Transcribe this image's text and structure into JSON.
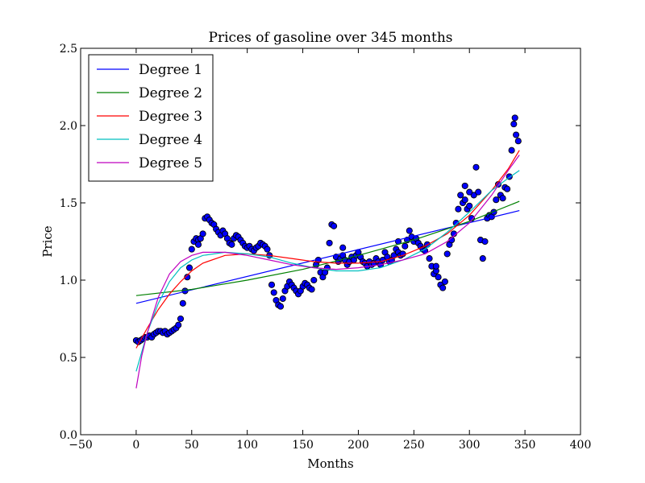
{
  "chart_data": {
    "type": "scatter",
    "title": "Prices of gasoline over 345 months",
    "xlabel": "Months",
    "ylabel": "Price",
    "xlim": [
      -50,
      400
    ],
    "ylim": [
      0.0,
      2.5
    ],
    "xticks": [
      -50,
      0,
      50,
      100,
      150,
      200,
      250,
      300,
      350,
      400
    ],
    "yticks": [
      0.0,
      0.5,
      1.0,
      1.5,
      2.0,
      2.5
    ],
    "xtick_labels": [
      "−50",
      "0",
      "50",
      "100",
      "150",
      "200",
      "250",
      "300",
      "350",
      "400"
    ],
    "ytick_labels": [
      "0.0",
      "0.5",
      "1.0",
      "1.5",
      "2.0",
      "2.5"
    ],
    "grid": false,
    "legend_position": "top-left",
    "scatter": {
      "color": "#0000ff",
      "edge_color": "#000000",
      "points": [
        [
          0,
          0.61
        ],
        [
          2,
          0.6
        ],
        [
          4,
          0.61
        ],
        [
          6,
          0.62
        ],
        [
          8,
          0.63
        ],
        [
          10,
          0.63
        ],
        [
          12,
          0.64
        ],
        [
          14,
          0.63
        ],
        [
          16,
          0.65
        ],
        [
          18,
          0.66
        ],
        [
          20,
          0.67
        ],
        [
          22,
          0.67
        ],
        [
          24,
          0.66
        ],
        [
          26,
          0.67
        ],
        [
          28,
          0.65
        ],
        [
          30,
          0.66
        ],
        [
          32,
          0.67
        ],
        [
          34,
          0.68
        ],
        [
          36,
          0.69
        ],
        [
          38,
          0.71
        ],
        [
          40,
          0.75
        ],
        [
          42,
          0.85
        ],
        [
          44,
          0.93
        ],
        [
          46,
          1.02
        ],
        [
          48,
          1.08
        ],
        [
          50,
          1.2
        ],
        [
          52,
          1.25
        ],
        [
          54,
          1.27
        ],
        [
          56,
          1.26
        ],
        [
          58,
          1.27
        ],
        [
          60,
          1.3
        ],
        [
          62,
          1.4
        ],
        [
          64,
          1.41
        ],
        [
          66,
          1.39
        ],
        [
          68,
          1.37
        ],
        [
          70,
          1.36
        ],
        [
          72,
          1.33
        ],
        [
          74,
          1.31
        ],
        [
          76,
          1.29
        ],
        [
          78,
          1.32
        ],
        [
          80,
          1.3
        ],
        [
          82,
          1.27
        ],
        [
          84,
          1.24
        ],
        [
          86,
          1.23
        ],
        [
          88,
          1.27
        ],
        [
          90,
          1.29
        ],
        [
          92,
          1.28
        ],
        [
          94,
          1.26
        ],
        [
          96,
          1.24
        ],
        [
          98,
          1.22
        ],
        [
          100,
          1.21
        ],
        [
          102,
          1.22
        ],
        [
          104,
          1.2
        ],
        [
          106,
          1.19
        ],
        [
          108,
          1.21
        ],
        [
          110,
          1.22
        ],
        [
          112,
          1.24
        ],
        [
          114,
          1.23
        ],
        [
          116,
          1.22
        ],
        [
          118,
          1.2
        ],
        [
          120,
          1.16
        ],
        [
          122,
          0.97
        ],
        [
          124,
          0.92
        ],
        [
          126,
          0.87
        ],
        [
          128,
          0.84
        ],
        [
          130,
          0.83
        ],
        [
          132,
          0.88
        ],
        [
          134,
          0.93
        ],
        [
          136,
          0.96
        ],
        [
          138,
          0.99
        ],
        [
          140,
          0.97
        ],
        [
          142,
          0.95
        ],
        [
          144,
          0.93
        ],
        [
          146,
          0.91
        ],
        [
          148,
          0.93
        ],
        [
          150,
          0.96
        ],
        [
          152,
          0.98
        ],
        [
          154,
          0.97
        ],
        [
          156,
          0.95
        ],
        [
          158,
          0.94
        ],
        [
          160,
          1.0
        ],
        [
          162,
          1.1
        ],
        [
          164,
          1.13
        ],
        [
          166,
          1.05
        ],
        [
          168,
          1.02
        ],
        [
          170,
          1.05
        ],
        [
          172,
          1.08
        ],
        [
          174,
          1.24
        ],
        [
          176,
          1.36
        ],
        [
          178,
          1.35
        ],
        [
          180,
          1.15
        ],
        [
          182,
          1.12
        ],
        [
          184,
          1.14
        ],
        [
          186,
          1.16
        ],
        [
          188,
          1.13
        ],
        [
          190,
          1.1
        ],
        [
          192,
          1.12
        ],
        [
          194,
          1.15
        ],
        [
          196,
          1.13
        ],
        [
          198,
          1.16
        ],
        [
          200,
          1.18
        ],
        [
          202,
          1.15
        ],
        [
          204,
          1.12
        ],
        [
          206,
          1.11
        ],
        [
          208,
          1.09
        ],
        [
          210,
          1.12
        ],
        [
          212,
          1.1
        ],
        [
          214,
          1.11
        ],
        [
          216,
          1.14
        ],
        [
          218,
          1.12
        ],
        [
          220,
          1.1
        ],
        [
          222,
          1.13
        ],
        [
          224,
          1.18
        ],
        [
          226,
          1.15
        ],
        [
          228,
          1.12
        ],
        [
          230,
          1.13
        ],
        [
          232,
          1.16
        ],
        [
          234,
          1.2
        ],
        [
          236,
          1.18
        ],
        [
          238,
          1.16
        ],
        [
          240,
          1.17
        ],
        [
          242,
          1.22
        ],
        [
          244,
          1.26
        ],
        [
          246,
          1.32
        ],
        [
          248,
          1.28
        ],
        [
          250,
          1.25
        ],
        [
          252,
          1.27
        ],
        [
          254,
          1.24
        ],
        [
          256,
          1.22
        ],
        [
          258,
          1.2
        ],
        [
          260,
          1.19
        ],
        [
          262,
          1.23
        ],
        [
          264,
          1.14
        ],
        [
          266,
          1.09
        ],
        [
          268,
          1.04
        ],
        [
          270,
          1.06
        ],
        [
          272,
          1.02
        ],
        [
          274,
          0.97
        ],
        [
          276,
          0.95
        ],
        [
          278,
          0.99
        ],
        [
          280,
          1.17
        ],
        [
          282,
          1.23
        ],
        [
          284,
          1.26
        ],
        [
          286,
          1.3
        ],
        [
          288,
          1.37
        ],
        [
          290,
          1.46
        ],
        [
          292,
          1.55
        ],
        [
          294,
          1.5
        ],
        [
          296,
          1.52
        ],
        [
          298,
          1.46
        ],
        [
          300,
          1.48
        ],
        [
          302,
          1.4
        ],
        [
          304,
          1.55
        ],
        [
          306,
          1.73
        ],
        [
          308,
          1.57
        ],
        [
          310,
          1.26
        ],
        [
          312,
          1.14
        ],
        [
          314,
          1.25
        ],
        [
          316,
          1.4
        ],
        [
          318,
          1.42
        ],
        [
          320,
          1.41
        ],
        [
          322,
          1.44
        ],
        [
          324,
          1.52
        ],
        [
          326,
          1.62
        ],
        [
          328,
          1.55
        ],
        [
          330,
          1.53
        ],
        [
          332,
          1.6
        ],
        [
          334,
          1.59
        ],
        [
          336,
          1.67
        ],
        [
          338,
          1.84
        ],
        [
          340,
          2.01
        ],
        [
          342,
          1.94
        ],
        [
          344,
          1.9
        ],
        [
          341,
          2.05
        ],
        [
          296,
          1.61
        ],
        [
          300,
          1.57
        ],
        [
          270,
          1.09
        ],
        [
          236,
          1.25
        ],
        [
          186,
          1.21
        ],
        [
          56,
          1.23
        ]
      ]
    },
    "series": [
      {
        "name": "Degree 1",
        "color": "#0000ff",
        "x": [
          0,
          345
        ],
        "y": [
          0.85,
          1.45
        ]
      },
      {
        "name": "Degree 2",
        "color": "#008000",
        "x": [
          0,
          50,
          100,
          150,
          200,
          250,
          300,
          345
        ],
        "y": [
          0.9,
          0.94,
          1.0,
          1.07,
          1.16,
          1.26,
          1.38,
          1.51
        ]
      },
      {
        "name": "Degree 3",
        "color": "#ff0000",
        "x": [
          0,
          10,
          20,
          30,
          40,
          50,
          60,
          80,
          100,
          120,
          140,
          160,
          180,
          200,
          220,
          240,
          260,
          280,
          300,
          320,
          335,
          345
        ],
        "y": [
          0.56,
          0.69,
          0.81,
          0.91,
          0.99,
          1.06,
          1.11,
          1.16,
          1.17,
          1.16,
          1.14,
          1.12,
          1.11,
          1.11,
          1.12,
          1.16,
          1.22,
          1.3,
          1.42,
          1.58,
          1.72,
          1.84
        ]
      },
      {
        "name": "Degree 4",
        "color": "#00bfbf",
        "x": [
          0,
          10,
          20,
          30,
          40,
          50,
          60,
          80,
          100,
          120,
          140,
          160,
          180,
          200,
          220,
          240,
          260,
          280,
          300,
          320,
          335,
          345
        ],
        "y": [
          0.41,
          0.66,
          0.85,
          0.99,
          1.08,
          1.13,
          1.16,
          1.18,
          1.17,
          1.15,
          1.11,
          1.08,
          1.06,
          1.06,
          1.08,
          1.13,
          1.2,
          1.31,
          1.44,
          1.58,
          1.66,
          1.71
        ]
      },
      {
        "name": "Degree 5",
        "color": "#bf00bf",
        "x": [
          0,
          5,
          10,
          20,
          30,
          40,
          50,
          60,
          70,
          80,
          90,
          100,
          120,
          140,
          160,
          180,
          200,
          220,
          240,
          260,
          280,
          300,
          320,
          335,
          345
        ],
        "y": [
          0.3,
          0.51,
          0.66,
          0.89,
          1.04,
          1.12,
          1.16,
          1.18,
          1.18,
          1.18,
          1.17,
          1.16,
          1.13,
          1.1,
          1.08,
          1.07,
          1.08,
          1.1,
          1.13,
          1.17,
          1.25,
          1.37,
          1.55,
          1.71,
          1.81
        ]
      }
    ]
  }
}
